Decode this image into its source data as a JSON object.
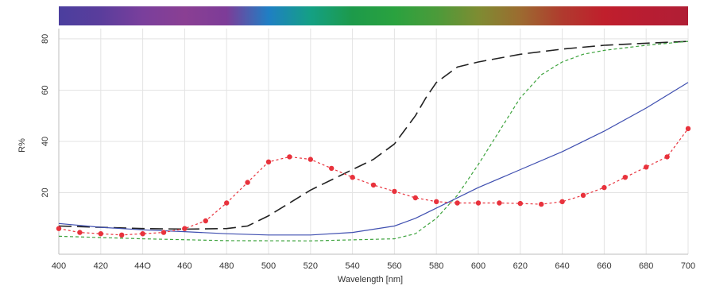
{
  "chart_data": {
    "type": "line",
    "xlabel": "Wavelength [nm]",
    "ylabel": "R%",
    "xlim": [
      400,
      700
    ],
    "ylim": [
      -4,
      84
    ],
    "grid": true,
    "x_ticks": [
      400,
      420,
      440,
      460,
      480,
      500,
      520,
      540,
      560,
      580,
      600,
      620,
      640,
      660,
      680,
      700
    ],
    "x_tick_labels": [
      "400",
      "420",
      "44O",
      "460",
      "480",
      "500",
      "520",
      "540",
      "560",
      "580",
      "600",
      "620",
      "640",
      "660",
      "680",
      "700"
    ],
    "y_ticks": [
      20,
      40,
      60,
      80
    ],
    "y_tick_labels": [
      "20",
      "40",
      "60",
      "80"
    ],
    "spectrum_bar": {
      "colors": [
        "#4b3e9e",
        "#5a3d9c",
        "#7a3f9c",
        "#8a3f93",
        "#7d3c98",
        "#1f7fc4",
        "#14a084",
        "#1d9a4a",
        "#2aa23f",
        "#4b9b3a",
        "#7e8c32",
        "#9c6b30",
        "#b03a2e",
        "#c01f2c",
        "#b81d32",
        "#b01e35"
      ]
    },
    "series": [
      {
        "color": "#222222",
        "style": "long-dash",
        "x": [
          400,
          420,
          440,
          460,
          480,
          490,
          500,
          510,
          520,
          530,
          540,
          550,
          560,
          570,
          575,
          580,
          590,
          600,
          620,
          640,
          660,
          680,
          700
        ],
        "y": [
          7,
          6.5,
          6,
          5.8,
          6,
          7,
          11,
          16,
          21,
          25,
          29,
          33,
          39,
          50,
          57,
          63,
          69,
          71,
          74,
          76,
          77.5,
          78.3,
          79
        ]
      },
      {
        "color": "#3da33d",
        "style": "short-dash",
        "x": [
          400,
          440,
          480,
          520,
          560,
          570,
          580,
          590,
          600,
          610,
          620,
          630,
          640,
          650,
          660,
          680,
          700
        ],
        "y": [
          3,
          2,
          1.3,
          1.2,
          2,
          4,
          10,
          19,
          31,
          44,
          57,
          66,
          71,
          74,
          75.5,
          77.5,
          79
        ]
      },
      {
        "color": "#3f4fb0",
        "style": "solid",
        "x": [
          400,
          420,
          440,
          460,
          480,
          500,
          520,
          540,
          560,
          570,
          580,
          600,
          620,
          640,
          660,
          680,
          700
        ],
        "y": [
          8,
          6.5,
          5.5,
          4.8,
          4,
          3.5,
          3.5,
          4.5,
          7,
          10,
          14,
          22,
          29,
          36,
          44,
          53,
          63
        ]
      },
      {
        "color": "#e8323c",
        "style": "dotted-markers",
        "x": [
          400,
          410,
          420,
          430,
          440,
          450,
          460,
          470,
          480,
          490,
          500,
          510,
          520,
          530,
          540,
          550,
          560,
          570,
          580,
          590,
          600,
          610,
          620,
          630,
          640,
          650,
          660,
          670,
          680,
          690,
          700
        ],
        "y": [
          6,
          4.5,
          4,
          3.5,
          4,
          4.5,
          6,
          9,
          16,
          24,
          32,
          34,
          33,
          29.5,
          26,
          23,
          20.5,
          18,
          16.5,
          16,
          16,
          16,
          15.8,
          15.5,
          16.5,
          19,
          22,
          26,
          30,
          34,
          45
        ]
      }
    ]
  }
}
